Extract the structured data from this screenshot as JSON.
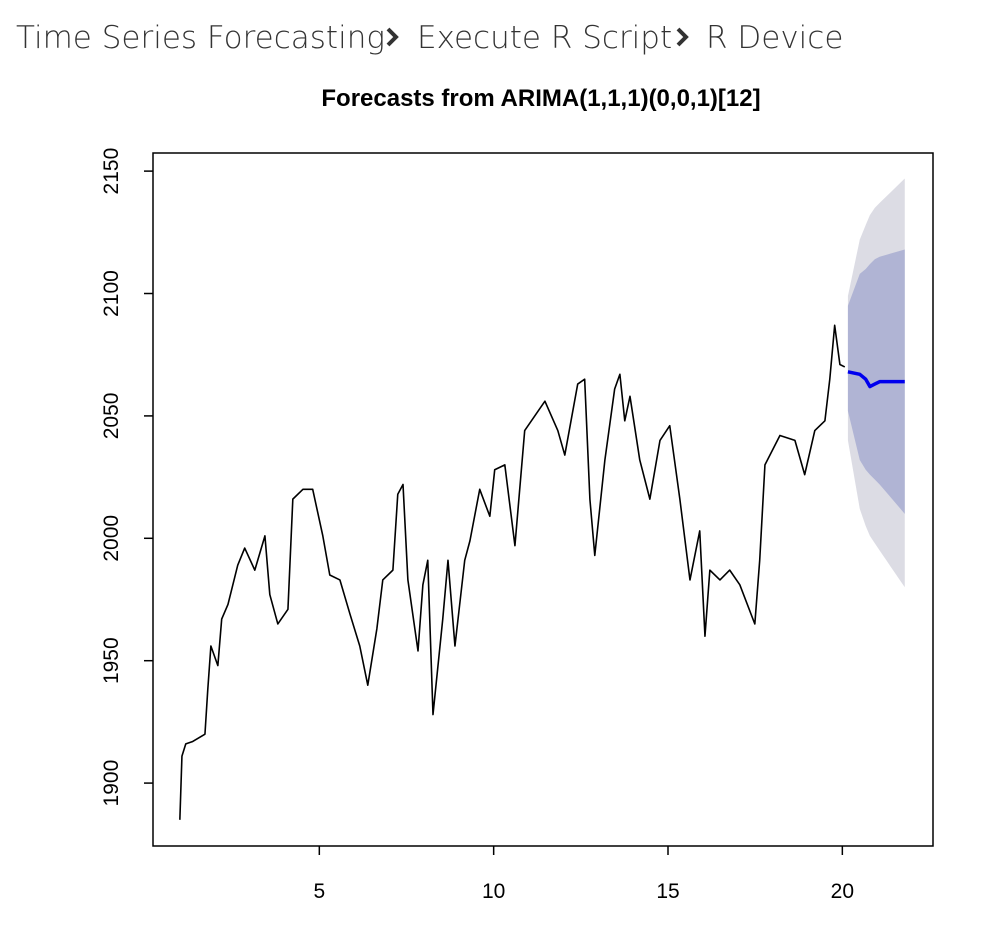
{
  "breadcrumb": [
    "Time Series Forecasting",
    "Execute R Script",
    "R Device"
  ],
  "chart_data": {
    "type": "line",
    "title": "Forecasts from ARIMA(1,1,1)(0,0,1)[12]",
    "xlim": [
      0.23,
      22.6
    ],
    "ylim": [
      1874.3,
      2157.4
    ],
    "xticks": [
      5,
      10,
      15,
      20
    ],
    "yticks": [
      1900,
      1950,
      2000,
      2050,
      2100,
      2150
    ],
    "series": [
      {
        "color": "#000000",
        "x": [
          1.0,
          1.06,
          1.17,
          1.37,
          1.72,
          1.8,
          1.89,
          2.09,
          2.2,
          2.38,
          2.66,
          2.86,
          3.15,
          3.44,
          3.58,
          3.81,
          4.1,
          4.24,
          4.53,
          4.81,
          5.1,
          5.3,
          5.59,
          5.88,
          6.16,
          6.39,
          6.65,
          6.82,
          7.11,
          7.25,
          7.4,
          7.54,
          7.83,
          7.97,
          8.11,
          8.26,
          8.54,
          8.69,
          8.89,
          9.17,
          9.32,
          9.6,
          9.89,
          10.03,
          10.32,
          10.61,
          10.89,
          11.47,
          11.84,
          12.04,
          12.41,
          12.61,
          12.76,
          12.9,
          13.19,
          13.47,
          13.62,
          13.76,
          13.91,
          14.19,
          14.48,
          14.77,
          15.05,
          15.34,
          15.63,
          15.91,
          16.06,
          16.2,
          16.49,
          16.77,
          17.06,
          17.49,
          17.63,
          17.78,
          18.21,
          18.64,
          18.92,
          19.21,
          19.5,
          19.64,
          19.78,
          19.93,
          20.07
        ],
        "values": [
          1885,
          1911,
          1916,
          1917,
          1920,
          1938,
          1956,
          1948,
          1967,
          1973,
          1989,
          1996,
          1987,
          2001,
          1977,
          1965,
          1971,
          2016,
          2020,
          2020,
          2001,
          1985,
          1983,
          1969,
          1956,
          1940,
          1963,
          1983,
          1987,
          2018,
          2022,
          1983,
          1954,
          1981,
          1991,
          1928,
          1967,
          1991,
          1956,
          1991,
          1999,
          2020,
          2009,
          2028,
          2030,
          1997,
          2044,
          2056,
          2044,
          2034,
          2063,
          2065,
          2016,
          1993,
          2032,
          2061,
          2067,
          2048,
          2058,
          2032,
          2016,
          2040,
          2046,
          2016,
          1983,
          2003,
          1960,
          1987,
          1983,
          1987,
          1981,
          1965,
          1991,
          2030,
          2042,
          2040,
          2026,
          2044,
          2048,
          2065,
          2087,
          2071,
          2070
        ]
      },
      {
        "color": "#0000ee",
        "x": [
          20.16,
          20.5,
          20.67,
          20.79,
          20.93,
          21.07,
          21.79
        ],
        "values": [
          2068,
          2067,
          2065,
          2062,
          2063,
          2064,
          2064
        ],
        "bands": [
          {
            "color": "#dcdce4",
            "lower": [
              2040,
              2012,
              2005,
              2001,
              1998,
              1995,
              1980
            ],
            "upper": [
              2099,
              2122,
              2128,
              2132,
              2135,
              2137,
              2147
            ]
          },
          {
            "color": "#b0b4d4",
            "lower": [
              2052,
              2032,
              2028,
              2026,
              2024,
              2022,
              2010
            ],
            "upper": [
              2095,
              2108,
              2110,
              2112,
              2114,
              2115,
              2118
            ]
          }
        ]
      }
    ]
  }
}
